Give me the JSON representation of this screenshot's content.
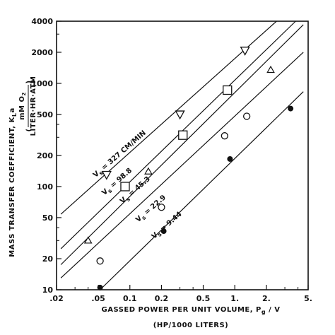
{
  "chart_data": {
    "type": "scatter",
    "x_scale": "log",
    "y_scale": "log",
    "xlim": [
      0.02,
      5
    ],
    "ylim": [
      10,
      4000
    ],
    "grid": false,
    "xlabel": "GASSED POWER PER UNIT VOLUME,  P",
    "xlabel_subscript": "g",
    "xlabel_suffix": " / V",
    "xlabel_units": "(HP/1000 LITERS)",
    "ylabel": "MASS TRANSFER COEFFICIENT,  K",
    "ylabel_subscript": "L",
    "ylabel_suffix": "a",
    "ylabel_units_numerator": "mM O",
    "ylabel_units_numerator_subscript": "2",
    "ylabel_units_denominator": "LITER·HR·ATM",
    "x_ticks": [
      {
        "value": 0.02,
        "label": ".02"
      },
      {
        "value": 0.05,
        "label": ".05"
      },
      {
        "value": 0.1,
        "label": "0.1"
      },
      {
        "value": 0.2,
        "label": "0.2"
      },
      {
        "value": 0.5,
        "label": "0.5"
      },
      {
        "value": 1,
        "label": "1."
      },
      {
        "value": 2,
        "label": "2."
      },
      {
        "value": 5,
        "label": "5."
      }
    ],
    "y_ticks": [
      {
        "value": 10,
        "label": "10"
      },
      {
        "value": 20,
        "label": "20"
      },
      {
        "value": 50,
        "label": "50"
      },
      {
        "value": 100,
        "label": "100"
      },
      {
        "value": 200,
        "label": "200"
      },
      {
        "value": 500,
        "label": "500"
      },
      {
        "value": 1000,
        "label": "1000"
      },
      {
        "value": 2000,
        "label": "2000"
      },
      {
        "value": 4000,
        "label": "4000"
      }
    ],
    "series": [
      {
        "name": "V  =  327 CM/MIN",
        "label_main": "V",
        "label_sub": "s",
        "label_rest": " = 327 CM/MIN",
        "marker": "triangle-down",
        "line": [
          [
            0.022,
            54
          ],
          [
            2.5,
            4000
          ]
        ],
        "points": [
          [
            0.06,
            130
          ],
          [
            0.3,
            500
          ],
          [
            1.25,
            2080
          ]
        ],
        "label_at": [
          0.047,
          122
        ],
        "label_angle": -41
      },
      {
        "name": "V  =  98.8",
        "label_main": "V",
        "label_sub": "s",
        "label_rest": " = 98.8",
        "marker": "square",
        "line": [
          [
            0.022,
            25
          ],
          [
            3.8,
            4000
          ]
        ],
        "points": [
          [
            0.09,
            100
          ],
          [
            0.32,
            315
          ],
          [
            0.85,
            860
          ]
        ],
        "label_at": [
          0.057,
          82
        ],
        "label_angle": -41
      },
      {
        "name": "V  =  45.3",
        "label_main": "V",
        "label_sub": "s",
        "label_rest": " = 45.3",
        "marker": "triangle-up",
        "line": [
          [
            0.022,
            17.5
          ],
          [
            4.5,
            3700
          ]
        ],
        "points": [
          [
            0.04,
            30
          ],
          [
            0.15,
            140
          ],
          [
            2.2,
            1350
          ]
        ],
        "label_at": [
          0.085,
          68
        ],
        "label_angle": -41
      },
      {
        "name": "V  =  22.9",
        "label_main": "V",
        "label_sub": "s",
        "label_rest": " = 22.9",
        "marker": "circle-open",
        "line": [
          [
            0.022,
            13
          ],
          [
            4.5,
            2000
          ]
        ],
        "points": [
          [
            0.052,
            19
          ],
          [
            0.2,
            63
          ],
          [
            0.8,
            310
          ],
          [
            1.3,
            480
          ]
        ],
        "label_at": [
          0.12,
          45
        ],
        "label_angle": -41
      },
      {
        "name": "V  =  9.44",
        "label_main": "V",
        "label_sub": "s",
        "label_rest": " = 9.44",
        "marker": "circle-filled",
        "line": [
          [
            0.052,
            10
          ],
          [
            4.5,
            830
          ]
        ],
        "points": [
          [
            0.052,
            10.5
          ],
          [
            0.21,
            37
          ],
          [
            0.9,
            185
          ],
          [
            3.4,
            570
          ]
        ],
        "label_at": [
          0.17,
          31
        ],
        "label_angle": -41
      }
    ]
  }
}
